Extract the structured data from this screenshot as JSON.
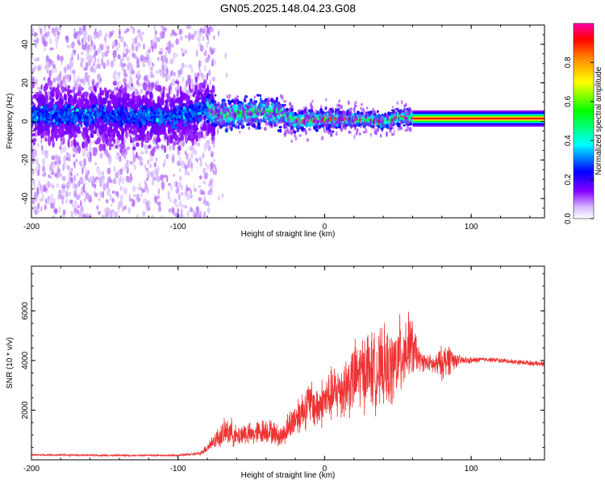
{
  "title": "GN05.2025.148.04.23.G08",
  "chart_data": [
    {
      "type": "heatmap",
      "xlabel": "Height of straight line (km)",
      "ylabel": "Frequency (Hz)",
      "xlim": [
        -200,
        150
      ],
      "ylim": [
        -50,
        50
      ],
      "xticks": [
        -200,
        -100,
        0,
        100
      ],
      "yticks": [
        -40,
        -20,
        0,
        20,
        40
      ],
      "colorbar": {
        "label": "Normalized spectral amplitude",
        "range": [
          0,
          1
        ],
        "ticks": [
          0.0,
          0.2,
          0.4,
          0.6,
          0.8
        ],
        "tick_labels": [
          "0.0",
          "0.2",
          "0.4",
          "0.6",
          "0.8"
        ],
        "colormap": [
          "#ffffff",
          "#d8c8f8",
          "#8800ff",
          "#0000ff",
          "#00ffff",
          "#00ff00",
          "#ffff00",
          "#ff8800",
          "#ff0000"
        ]
      },
      "ridge": [
        {
          "x": -200,
          "y": 3
        },
        {
          "x": -150,
          "y": 3
        },
        {
          "x": -100,
          "y": 2
        },
        {
          "x": -80,
          "y": 7
        },
        {
          "x": -75,
          "y": 4
        },
        {
          "x": -70,
          "y": 3
        },
        {
          "x": -60,
          "y": 4
        },
        {
          "x": -50,
          "y": 5
        },
        {
          "x": -40,
          "y": 5
        },
        {
          "x": -30,
          "y": 4
        },
        {
          "x": -20,
          "y": 0
        },
        {
          "x": -10,
          "y": 1
        },
        {
          "x": 0,
          "y": 1
        },
        {
          "x": 10,
          "y": 1
        },
        {
          "x": 20,
          "y": 1
        },
        {
          "x": 30,
          "y": 1
        },
        {
          "x": 40,
          "y": 0
        },
        {
          "x": 50,
          "y": 2
        },
        {
          "x": 60,
          "y": 2
        },
        {
          "x": 80,
          "y": 1
        },
        {
          "x": 100,
          "y": 1
        },
        {
          "x": 150,
          "y": 1
        }
      ]
    },
    {
      "type": "line",
      "xlabel": "Height of straight line (km)",
      "ylabel": "SNR (10 * v/v)",
      "xlim": [
        -200,
        150
      ],
      "ylim": [
        0,
        7800
      ],
      "xticks": [
        -200,
        -100,
        0,
        100
      ],
      "yticks": [
        2000,
        4000,
        6000
      ],
      "color": "#ee3333",
      "series": [
        {
          "x": [
            -200,
            -150,
            -100,
            -85,
            -80,
            -75,
            -70,
            -65,
            -60,
            -55,
            -50,
            -45,
            -40,
            -35,
            -30,
            -25,
            -20,
            -15,
            -10,
            -5,
            0,
            5,
            10,
            15,
            20,
            25,
            30,
            35,
            40,
            45,
            50,
            55,
            60,
            65,
            70,
            75,
            80,
            85,
            90,
            95,
            100,
            110,
            120,
            130,
            140,
            150
          ],
          "values": [
            200,
            180,
            180,
            250,
            500,
            800,
            1000,
            1200,
            900,
            1100,
            1000,
            1100,
            1200,
            1100,
            900,
            1300,
            1700,
            2000,
            2300,
            2100,
            2400,
            2600,
            2800,
            3000,
            3300,
            3500,
            3700,
            3500,
            3700,
            3600,
            4000,
            4500,
            4500,
            4000,
            3900,
            3800,
            3900,
            4100,
            4000,
            4000,
            4000,
            4050,
            4000,
            3950,
            3900,
            3850
          ],
          "noise": [
            40,
            40,
            40,
            80,
            250,
            400,
            600,
            700,
            500,
            600,
            500,
            600,
            600,
            550,
            500,
            700,
            900,
            1000,
            1100,
            1100,
            1200,
            1300,
            1400,
            1600,
            1700,
            1800,
            1900,
            1800,
            1900,
            1800,
            1900,
            2000,
            1400,
            500,
            400,
            500,
            800,
            800,
            300,
            200,
            150,
            120,
            120,
            120,
            120,
            120
          ]
        }
      ]
    }
  ]
}
